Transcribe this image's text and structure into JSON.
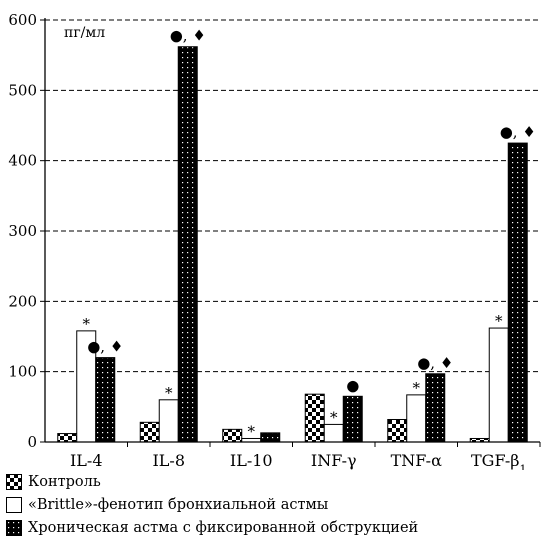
{
  "chart_data": {
    "type": "bar",
    "unit_label": "пг/мл",
    "categories": [
      "IL-4",
      "IL-8",
      "IL-10",
      "INF-γ",
      "TNF-α",
      "TGF-β"
    ],
    "category_subscripts": [
      "",
      "",
      "",
      "",
      "",
      "1"
    ],
    "ylim": [
      0,
      600
    ],
    "yticks": [
      "0",
      "100",
      "200",
      "300",
      "400",
      "500",
      "600"
    ],
    "grid": "horizontal dashed",
    "series": [
      {
        "name": "Контроль",
        "pattern": "checker",
        "values": [
          12,
          28,
          18,
          68,
          32,
          5
        ]
      },
      {
        "name": "«Brittle»-фенотип бронхиальной астмы",
        "pattern": "white",
        "values": [
          158,
          60,
          5,
          25,
          67,
          162
        ]
      },
      {
        "name": "Хроническая астма с фиксированной обструкцией",
        "pattern": "dots",
        "values": [
          120,
          562,
          13,
          65,
          97,
          425
        ]
      }
    ],
    "annotations": [
      {
        "series": 1,
        "category": 0,
        "text": "*"
      },
      {
        "series": 2,
        "category": 0,
        "text": "●, ♦"
      },
      {
        "series": 1,
        "category": 1,
        "text": "*"
      },
      {
        "series": 2,
        "category": 1,
        "text": "●, ♦"
      },
      {
        "series": 1,
        "category": 2,
        "text": "*"
      },
      {
        "series": 1,
        "category": 3,
        "text": "*"
      },
      {
        "series": 2,
        "category": 3,
        "text": "●"
      },
      {
        "series": 1,
        "category": 4,
        "text": "*"
      },
      {
        "series": 2,
        "category": 4,
        "text": "●, ♦"
      },
      {
        "series": 1,
        "category": 5,
        "text": "*"
      },
      {
        "series": 2,
        "category": 5,
        "text": "●, ♦"
      }
    ]
  }
}
